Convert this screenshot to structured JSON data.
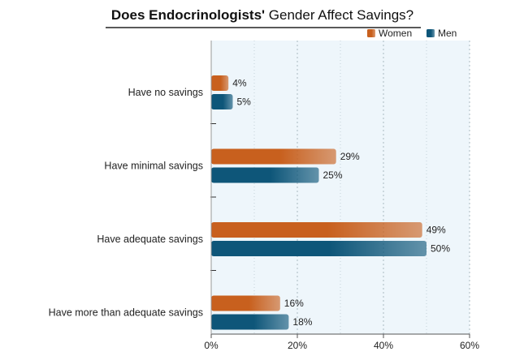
{
  "chart_data": {
    "type": "bar",
    "orientation": "horizontal",
    "title_bold": "Does Endocrinologists'",
    "title_rest": " Gender Affect Savings?",
    "categories": [
      "Have no savings",
      "Have minimal savings",
      "Have adequate savings",
      "Have more than adequate savings"
    ],
    "series": [
      {
        "name": "Women",
        "values": [
          4,
          29,
          49,
          16
        ],
        "color": "#c8601e",
        "labels": [
          "4%",
          "29%",
          "49%",
          "16%"
        ]
      },
      {
        "name": "Men",
        "values": [
          5,
          25,
          50,
          18
        ],
        "color": "#0e5679",
        "labels": [
          "5%",
          "25%",
          "50%",
          "18%"
        ]
      }
    ],
    "xlim": [
      0,
      60
    ],
    "xticks": [
      0,
      20,
      40,
      60
    ],
    "xtick_labels": [
      "0%",
      "20%",
      "40%",
      "60%"
    ],
    "grid": true,
    "legend_position": "top-right",
    "plot_background": "#eef6fb"
  }
}
